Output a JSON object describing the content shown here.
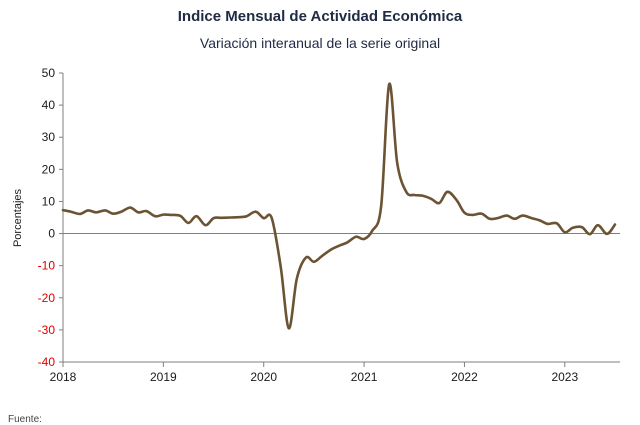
{
  "chart_data": {
    "type": "line",
    "title": "Indice Mensual de  Actividad Económica",
    "subtitle": "Variación interanual de la serie original",
    "ylabel": "Porcentajes",
    "xlabel": "",
    "ylim": [
      -40,
      50
    ],
    "yticks": [
      -40,
      -30,
      -20,
      -10,
      0,
      10,
      20,
      30,
      40,
      50
    ],
    "negative_tick_color": "#e00000",
    "positive_tick_color": "#1a1a1a",
    "line_color": "#6b5334",
    "xticks": [
      {
        "label": "2018",
        "x": 2018
      },
      {
        "label": "2019",
        "x": 2019
      },
      {
        "label": "2020",
        "x": 2020
      },
      {
        "label": "2021",
        "x": 2021
      },
      {
        "label": "2022",
        "x": 2022
      },
      {
        "label": "2023",
        "x": 2023
      }
    ],
    "xlim": [
      2018,
      2023.55
    ],
    "grid": false,
    "series": [
      {
        "values": [
          [
            2018.0,
            7.3
          ],
          [
            2018.08,
            6.8
          ],
          [
            2018.17,
            6.1
          ],
          [
            2018.25,
            7.2
          ],
          [
            2018.33,
            6.6
          ],
          [
            2018.42,
            7.2
          ],
          [
            2018.5,
            6.2
          ],
          [
            2018.58,
            6.8
          ],
          [
            2018.67,
            8.1
          ],
          [
            2018.75,
            6.6
          ],
          [
            2018.83,
            7.0
          ],
          [
            2018.92,
            5.4
          ],
          [
            2019.0,
            5.9
          ],
          [
            2019.08,
            5.8
          ],
          [
            2019.17,
            5.5
          ],
          [
            2019.25,
            3.3
          ],
          [
            2019.33,
            5.4
          ],
          [
            2019.42,
            2.6
          ],
          [
            2019.5,
            4.8
          ],
          [
            2019.58,
            4.9
          ],
          [
            2019.67,
            5.0
          ],
          [
            2019.75,
            5.1
          ],
          [
            2019.83,
            5.4
          ],
          [
            2019.92,
            6.8
          ],
          [
            2020.0,
            4.8
          ],
          [
            2020.08,
            4.8
          ],
          [
            2020.17,
            -10.5
          ],
          [
            2020.25,
            -29.5
          ],
          [
            2020.33,
            -14.0
          ],
          [
            2020.42,
            -7.5
          ],
          [
            2020.5,
            -8.8
          ],
          [
            2020.58,
            -7.0
          ],
          [
            2020.67,
            -5.0
          ],
          [
            2020.75,
            -3.8
          ],
          [
            2020.83,
            -2.8
          ],
          [
            2020.92,
            -1.0
          ],
          [
            2021.0,
            -1.7
          ],
          [
            2021.08,
            0.8
          ],
          [
            2021.17,
            8.5
          ],
          [
            2021.25,
            46.5
          ],
          [
            2021.33,
            22.0
          ],
          [
            2021.42,
            13.0
          ],
          [
            2021.5,
            12.0
          ],
          [
            2021.58,
            11.8
          ],
          [
            2021.67,
            10.8
          ],
          [
            2021.75,
            9.5
          ],
          [
            2021.83,
            13.0
          ],
          [
            2021.92,
            10.5
          ],
          [
            2022.0,
            6.5
          ],
          [
            2022.08,
            5.8
          ],
          [
            2022.17,
            6.2
          ],
          [
            2022.25,
            4.6
          ],
          [
            2022.33,
            4.8
          ],
          [
            2022.42,
            5.6
          ],
          [
            2022.5,
            4.6
          ],
          [
            2022.58,
            5.6
          ],
          [
            2022.67,
            4.8
          ],
          [
            2022.75,
            4.1
          ],
          [
            2022.83,
            3.0
          ],
          [
            2022.92,
            3.2
          ],
          [
            2023.0,
            0.4
          ],
          [
            2023.08,
            1.8
          ],
          [
            2023.17,
            2.0
          ],
          [
            2023.25,
            -0.2
          ],
          [
            2023.33,
            2.6
          ],
          [
            2023.42,
            -0.1
          ],
          [
            2023.5,
            2.8
          ]
        ]
      }
    ]
  },
  "footer_text": "Fuente:"
}
